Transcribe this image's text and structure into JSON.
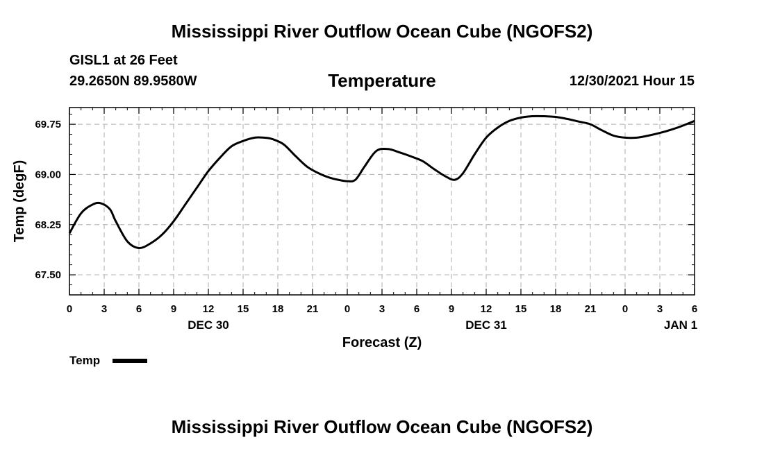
{
  "header": {
    "main_title": "Mississippi River Outflow Ocean Cube (NGOFS2)",
    "station": "GISL1 at 26 Feet",
    "coords": "29.2650N  89.9580W",
    "subtitle": "Temperature",
    "datetime": "12/30/2021 Hour 15"
  },
  "footer": {
    "bottom_title": "Mississippi River Outflow Ocean Cube (NGOFS2)"
  },
  "chart_data": {
    "type": "line",
    "title": "Temperature",
    "xlabel": "Forecast (Z)",
    "ylabel": "Temp (degF)",
    "xlim": [
      0,
      54
    ],
    "ylim": [
      67.2,
      70.0
    ],
    "grid": true,
    "yticks": [
      67.5,
      68.25,
      69.0,
      69.75
    ],
    "ytick_labels": [
      "67.50",
      "68.25",
      "69.00",
      "69.75"
    ],
    "xticks": [
      0,
      3,
      6,
      9,
      12,
      15,
      18,
      21,
      24,
      27,
      30,
      33,
      36,
      39,
      42,
      45,
      48,
      51,
      54
    ],
    "xtick_labels": [
      "0",
      "3",
      "6",
      "9",
      "12",
      "15",
      "18",
      "21",
      "0",
      "3",
      "6",
      "9",
      "12",
      "15",
      "18",
      "21",
      "0",
      "3",
      "6"
    ],
    "date_labels": [
      {
        "x": 12,
        "label": "DEC 30"
      },
      {
        "x": 36,
        "label": "DEC 31"
      },
      {
        "x": 52.8,
        "label": "JAN 1"
      }
    ],
    "legend": {
      "label": "Temp",
      "placement": "bottom-left"
    },
    "series": [
      {
        "name": "Temp",
        "x": [
          0,
          1,
          2,
          2.7,
          3.5,
          4,
          5,
          6,
          7,
          8,
          9,
          10,
          11,
          12,
          13,
          14,
          15,
          16,
          16.8,
          17.5,
          18.5,
          19.5,
          20.5,
          21.5,
          22.5,
          23.5,
          24,
          24.7,
          25.5,
          26.5,
          27.5,
          28.5,
          29.5,
          30.5,
          31.5,
          32.5,
          33.3,
          34,
          35,
          36,
          37,
          38,
          39,
          40,
          41,
          42,
          43,
          44,
          45,
          46,
          47,
          48,
          49,
          50,
          51,
          52,
          53,
          54
        ],
        "values": [
          68.12,
          68.42,
          68.55,
          68.57,
          68.48,
          68.3,
          68.0,
          67.9,
          67.97,
          68.1,
          68.3,
          68.55,
          68.8,
          69.05,
          69.25,
          69.42,
          69.5,
          69.55,
          69.55,
          69.53,
          69.45,
          69.28,
          69.12,
          69.02,
          68.95,
          68.91,
          68.9,
          68.92,
          69.12,
          69.35,
          69.38,
          69.33,
          69.27,
          69.2,
          69.08,
          68.97,
          68.92,
          69.02,
          69.3,
          69.55,
          69.7,
          69.8,
          69.85,
          69.87,
          69.87,
          69.86,
          69.83,
          69.79,
          69.75,
          69.66,
          69.58,
          69.55,
          69.55,
          69.58,
          69.62,
          69.67,
          69.73,
          69.8
        ]
      }
    ]
  }
}
